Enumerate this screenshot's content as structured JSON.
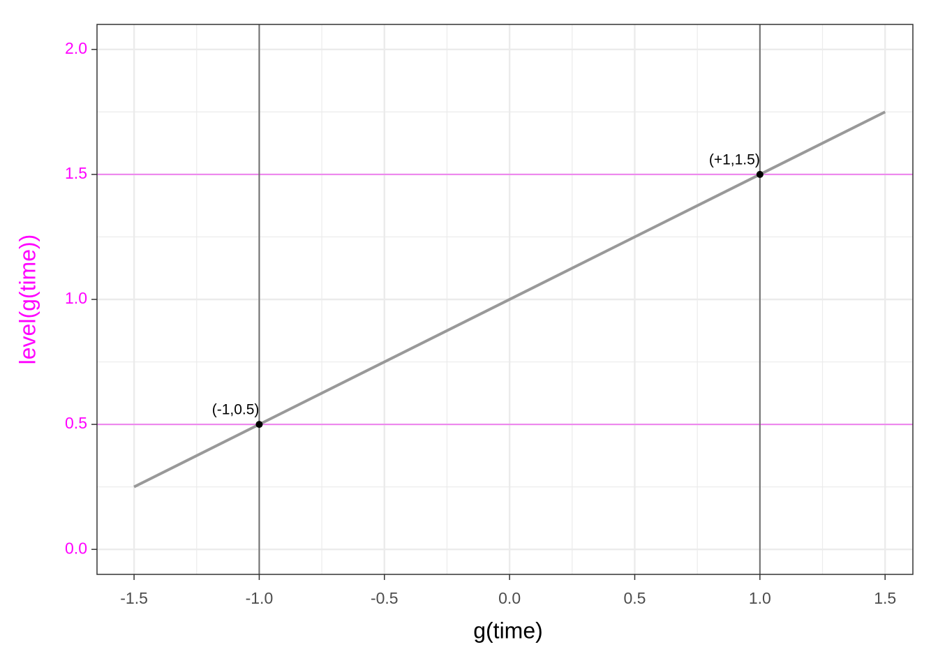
{
  "chart_data": {
    "type": "line",
    "x_label": "g(time)",
    "y_label": "level(g(time))",
    "x": [
      -1.5,
      1.5
    ],
    "series": [
      {
        "color": "#999999",
        "values": [
          0.25,
          1.75
        ]
      }
    ],
    "points": {
      "x": [
        -1,
        1
      ],
      "y": [
        0.5,
        1.5
      ],
      "labels": [
        "(-1,0.5)",
        "(+1,1.5)"
      ],
      "color": "#000000"
    },
    "vlines": {
      "values": [
        -1,
        1
      ],
      "color": "#6e6e6e"
    },
    "hlines": {
      "values": [
        0.5,
        1.5
      ],
      "color": "#ee82ee"
    },
    "xlim": [
      -1.648,
      1.611
    ],
    "ylim": [
      -0.1,
      2.1
    ],
    "xticks": [
      -1.5,
      {
        "value": -1,
        "label": "-1.0"
      },
      -0.5,
      {
        "value": 0,
        "label": "0.0"
      },
      0.5,
      {
        "value": 1,
        "label": "1.0"
      },
      1.5
    ],
    "yticks": [
      {
        "value": 0,
        "label": "0.0"
      },
      0.5,
      {
        "value": 1,
        "label": "1.0"
      },
      1.5,
      {
        "value": 2,
        "label": "2.0"
      }
    ],
    "x_minor_ticks": [
      -1.25,
      -0.75,
      -0.25,
      0.25,
      0.75,
      1.25
    ],
    "y_minor_ticks": [
      0.25,
      0.75,
      1.25,
      1.75
    ],
    "grid": true,
    "y_axis_color": "#ff00ff"
  }
}
